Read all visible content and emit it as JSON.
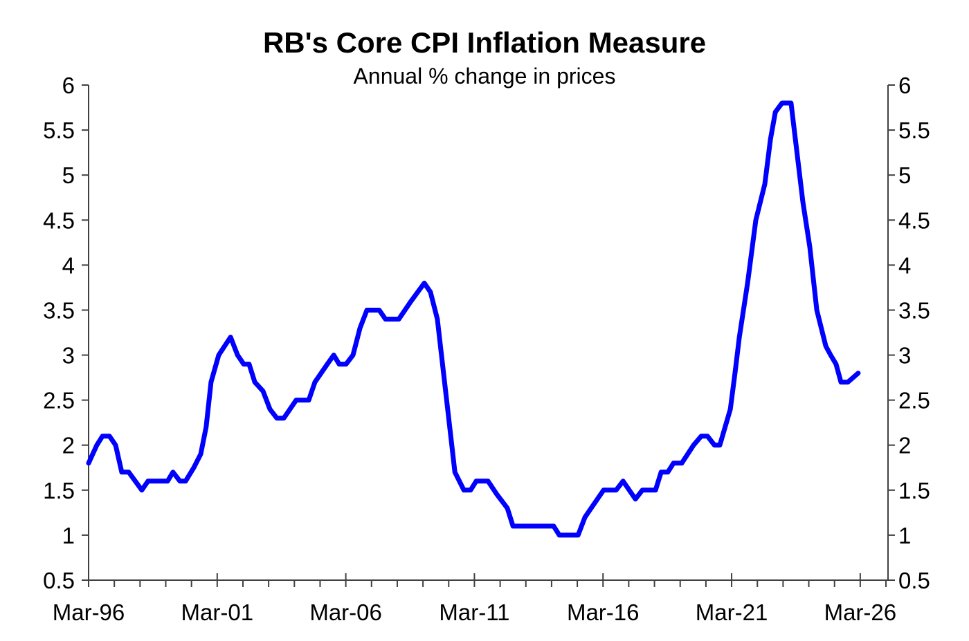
{
  "chart_data": {
    "type": "line",
    "title": "RB's Core CPI Inflation Measure",
    "subtitle": "Annual % change in prices",
    "xlabel": "",
    "ylabel": "",
    "ylim": [
      0.5,
      6
    ],
    "xlim": [
      1996.17,
      2027.25
    ],
    "grid": false,
    "legend": "none",
    "y_ticks": [
      0.5,
      1,
      1.5,
      2,
      2.5,
      3,
      3.5,
      4,
      4.5,
      5,
      5.5,
      6
    ],
    "y_tick_labels": [
      "0.5",
      "1",
      "1.5",
      "2",
      "2.5",
      "3",
      "3.5",
      "4",
      "4.5",
      "5",
      "5.5",
      "6"
    ],
    "x_ticks": [
      1996.17,
      2001.17,
      2006.17,
      2011.17,
      2016.17,
      2021.17,
      2026.17
    ],
    "x_tick_labels": [
      "Mar-96",
      "Mar-01",
      "Mar-06",
      "Mar-11",
      "Mar-16",
      "Mar-21",
      "Mar-26"
    ],
    "series": [
      {
        "name": "Core CPI inflation",
        "color": "#0000ff",
        "x": [
          1996.17,
          1996.49,
          1996.71,
          1996.98,
          1997.22,
          1997.46,
          1997.73,
          1998.24,
          1998.48,
          1999.24,
          1999.45,
          1999.72,
          1999.94,
          2000.26,
          2000.53,
          2000.74,
          2000.93,
          2001.23,
          2001.69,
          2001.96,
          2002.2,
          2002.41,
          2002.63,
          2002.95,
          2003.22,
          2003.49,
          2003.76,
          2004.24,
          2004.73,
          2004.97,
          2005.45,
          2005.7,
          2005.91,
          2006.18,
          2006.45,
          2006.72,
          2006.99,
          2007.47,
          2007.71,
          2008.23,
          2008.71,
          2009.22,
          2009.46,
          2009.73,
          2010.41,
          2010.76,
          2011.02,
          2011.24,
          2011.7,
          2012.05,
          2012.45,
          2012.67,
          2014.25,
          2014.47,
          2015.2,
          2015.47,
          2016.19,
          2016.68,
          2016.95,
          2017.43,
          2017.7,
          2018.21,
          2018.43,
          2018.69,
          2018.91,
          2019.23,
          2019.69,
          2019.99,
          2020.23,
          2020.5,
          2020.71,
          2021.12,
          2021.3,
          2021.47,
          2021.79,
          2022.11,
          2022.46,
          2022.68,
          2022.87,
          2023.13,
          2023.48,
          2023.94,
          2024.21,
          2024.48,
          2024.83,
          2025.02,
          2025.23,
          2025.42,
          2025.69,
          2026.09
        ],
        "values": [
          1.8,
          2.0,
          2.1,
          2.1,
          2.0,
          1.7,
          1.7,
          1.5,
          1.6,
          1.6,
          1.7,
          1.6,
          1.6,
          1.75,
          1.9,
          2.2,
          2.7,
          3.0,
          3.2,
          3.0,
          2.9,
          2.9,
          2.7,
          2.6,
          2.4,
          2.3,
          2.3,
          2.5,
          2.5,
          2.7,
          2.9,
          3.0,
          2.9,
          2.9,
          3.0,
          3.3,
          3.5,
          3.5,
          3.4,
          3.4,
          3.6,
          3.8,
          3.7,
          3.4,
          1.7,
          1.5,
          1.5,
          1.6,
          1.6,
          1.45,
          1.3,
          1.1,
          1.1,
          1.0,
          1.0,
          1.2,
          1.5,
          1.5,
          1.6,
          1.4,
          1.5,
          1.5,
          1.7,
          1.7,
          1.8,
          1.8,
          2.0,
          2.1,
          2.1,
          2.0,
          2.0,
          2.4,
          2.8,
          3.2,
          3.8,
          4.5,
          4.9,
          5.4,
          5.7,
          5.8,
          5.8,
          4.7,
          4.2,
          3.5,
          3.1,
          3.0,
          2.9,
          2.7,
          2.7,
          2.8
        ]
      }
    ]
  }
}
